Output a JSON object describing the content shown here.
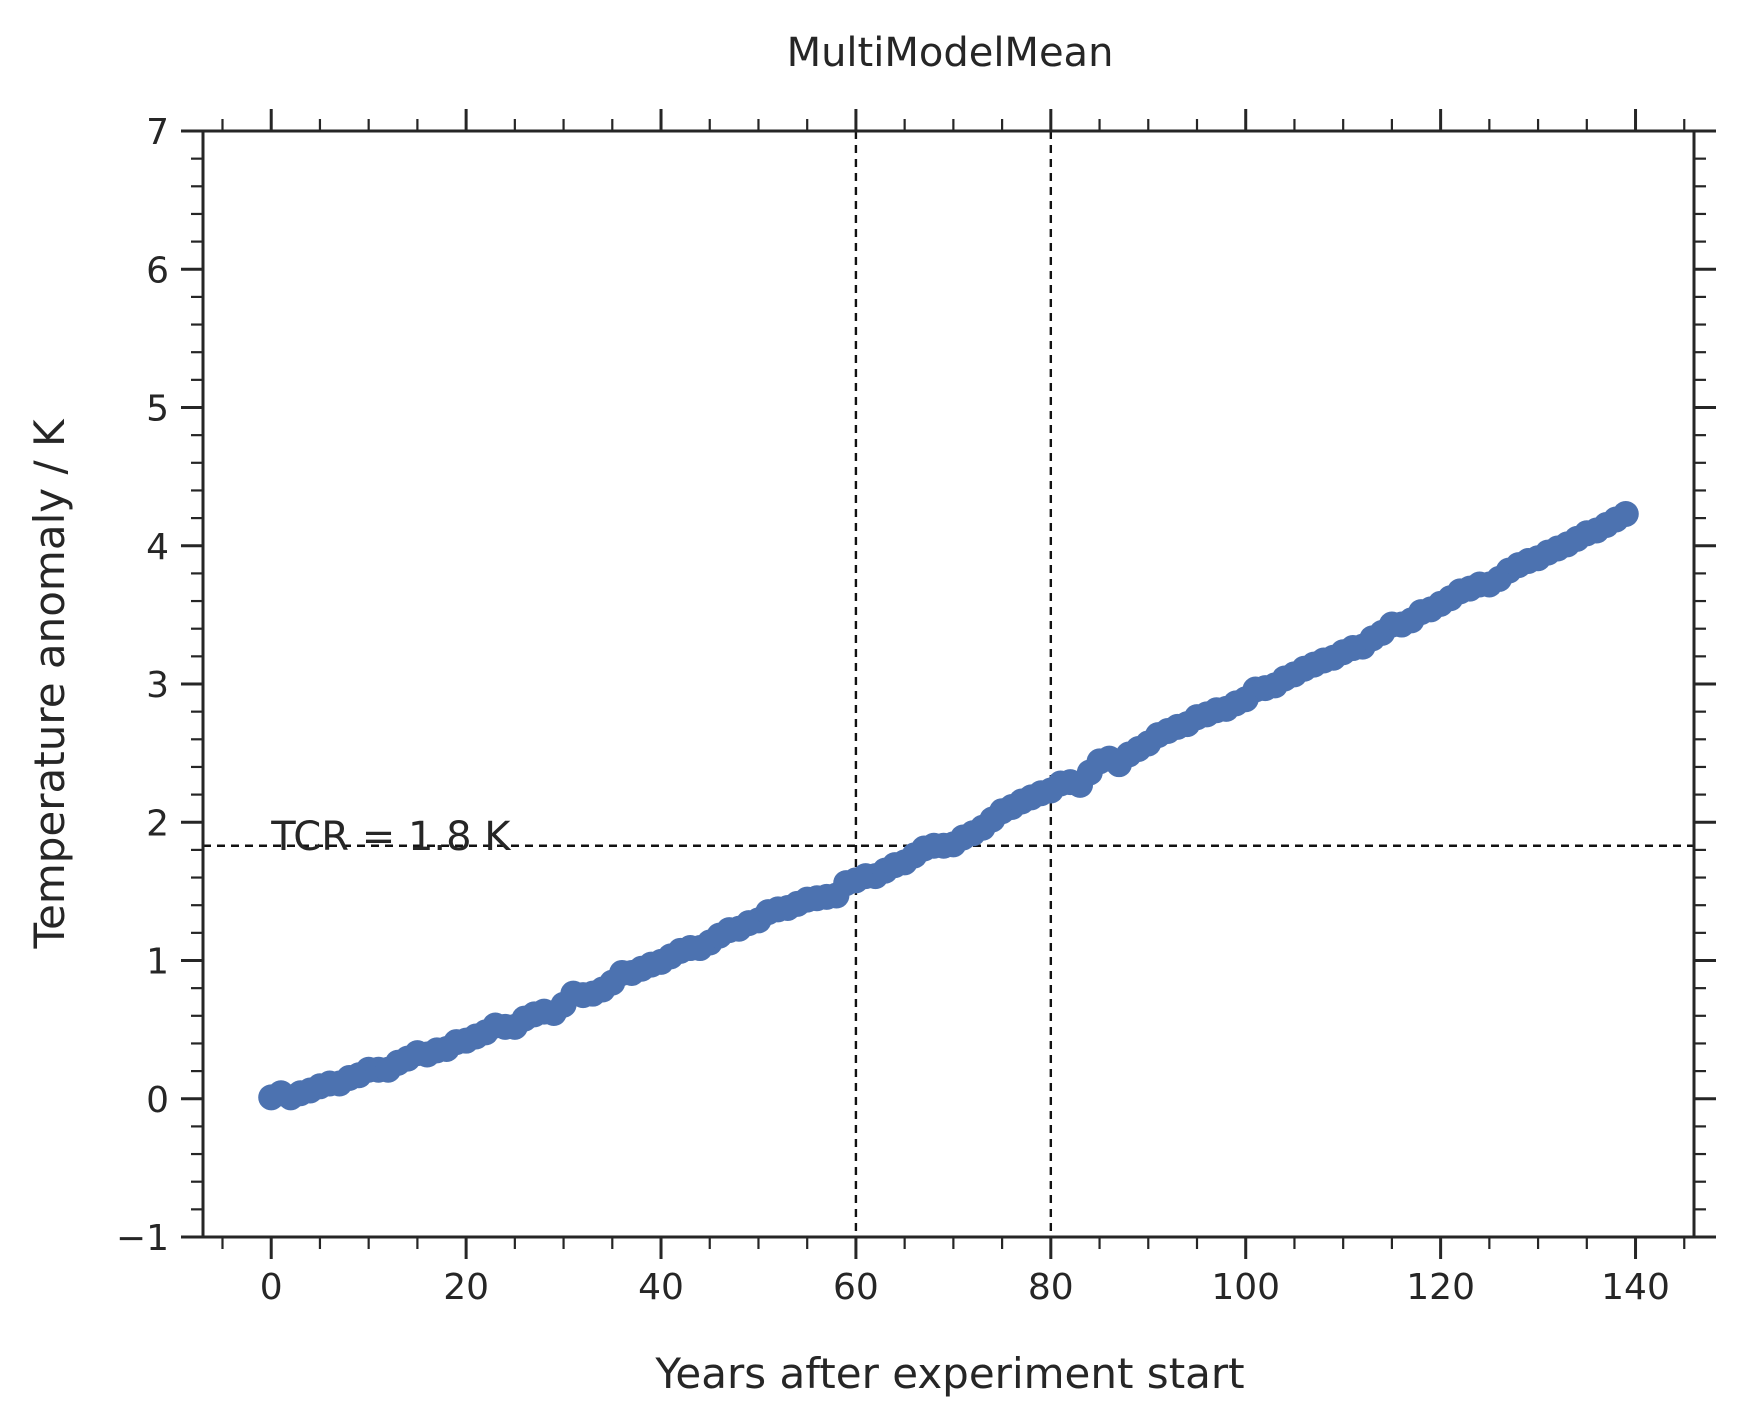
{
  "chart_data": {
    "type": "scatter",
    "title": "MultiModelMean",
    "xlabel": "Years after experiment start",
    "ylabel": "Temperature anomaly / K",
    "xlim": [
      -7,
      146
    ],
    "ylim": [
      -1,
      7
    ],
    "xticks": [
      0,
      20,
      40,
      60,
      80,
      100,
      120,
      140
    ],
    "xtick_labels": [
      "0",
      "20",
      "40",
      "60",
      "80",
      "100",
      "120",
      "140"
    ],
    "yticks": [
      -1,
      0,
      1,
      2,
      3,
      4,
      5,
      6,
      7
    ],
    "ytick_labels": [
      "−1",
      "0",
      "1",
      "2",
      "3",
      "4",
      "5",
      "6",
      "7"
    ],
    "grid": false,
    "marker_color": "#4c72b0",
    "series": [
      {
        "x": [
          0,
          1,
          2,
          3,
          4,
          5,
          6,
          7,
          8,
          9,
          10,
          11,
          12,
          13,
          14,
          15,
          16,
          17,
          18,
          19,
          20,
          21,
          22,
          23,
          24,
          25,
          26,
          27,
          28,
          29,
          30,
          31,
          32,
          33,
          34,
          35,
          36,
          37,
          38,
          39,
          40,
          41,
          42,
          43,
          44,
          45,
          46,
          47,
          48,
          49,
          50,
          51,
          52,
          53,
          54,
          55,
          56,
          57,
          58,
          59,
          60,
          61,
          62,
          63,
          64,
          65,
          66,
          67,
          68,
          69,
          70,
          71,
          72,
          73,
          74,
          75,
          76,
          77,
          78,
          79,
          80,
          81,
          82,
          83,
          84,
          85,
          86,
          87,
          88,
          89,
          90,
          91,
          92,
          93,
          94,
          95,
          96,
          97,
          98,
          99,
          100,
          101,
          102,
          103,
          104,
          105,
          106,
          107,
          108,
          109,
          110,
          111,
          112,
          113,
          114,
          115,
          116,
          117,
          118,
          119,
          120,
          121,
          122,
          123,
          124,
          125,
          126,
          127,
          128,
          129,
          130,
          131,
          132,
          133,
          134,
          135,
          136,
          137,
          138,
          139
        ],
        "y": [
          0.01,
          0.04,
          0.01,
          0.04,
          0.06,
          0.09,
          0.11,
          0.11,
          0.15,
          0.17,
          0.21,
          0.21,
          0.21,
          0.26,
          0.29,
          0.33,
          0.32,
          0.35,
          0.36,
          0.41,
          0.42,
          0.45,
          0.48,
          0.53,
          0.52,
          0.52,
          0.58,
          0.61,
          0.63,
          0.62,
          0.68,
          0.76,
          0.75,
          0.76,
          0.79,
          0.84,
          0.91,
          0.91,
          0.94,
          0.97,
          0.99,
          1.03,
          1.07,
          1.09,
          1.09,
          1.13,
          1.18,
          1.22,
          1.23,
          1.27,
          1.29,
          1.35,
          1.37,
          1.38,
          1.41,
          1.44,
          1.45,
          1.46,
          1.47,
          1.56,
          1.58,
          1.61,
          1.61,
          1.65,
          1.69,
          1.71,
          1.76,
          1.81,
          1.83,
          1.83,
          1.84,
          1.89,
          1.92,
          1.96,
          2.02,
          2.08,
          2.11,
          2.15,
          2.18,
          2.21,
          2.23,
          2.28,
          2.29,
          2.27,
          2.36,
          2.44,
          2.46,
          2.42,
          2.49,
          2.53,
          2.57,
          2.63,
          2.66,
          2.69,
          2.71,
          2.76,
          2.78,
          2.81,
          2.82,
          2.86,
          2.89,
          2.96,
          2.97,
          2.99,
          3.04,
          3.07,
          3.11,
          3.14,
          3.17,
          3.19,
          3.23,
          3.26,
          3.27,
          3.33,
          3.37,
          3.43,
          3.43,
          3.46,
          3.52,
          3.54,
          3.58,
          3.62,
          3.67,
          3.69,
          3.72,
          3.72,
          3.76,
          3.82,
          3.86,
          3.89,
          3.91,
          3.95,
          3.98,
          4.01,
          4.05,
          4.09,
          4.11,
          4.15,
          4.19,
          4.23
        ]
      }
    ],
    "hlines": [
      {
        "y": 1.83,
        "style": "dashed",
        "color": "#111111"
      }
    ],
    "vlines": [
      {
        "x": 60,
        "style": "dashed",
        "color": "#111111"
      },
      {
        "x": 80,
        "style": "dashed",
        "color": "#111111"
      }
    ],
    "annotations": [
      {
        "text": "TCR = 1.8 K",
        "x": 0,
        "y": 1.9
      }
    ]
  }
}
